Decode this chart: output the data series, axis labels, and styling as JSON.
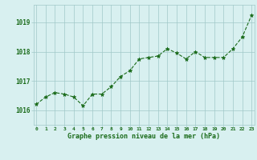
{
  "x": [
    0,
    1,
    2,
    3,
    4,
    5,
    6,
    7,
    8,
    9,
    10,
    11,
    12,
    13,
    14,
    15,
    16,
    17,
    18,
    19,
    20,
    21,
    22,
    23
  ],
  "y": [
    1016.2,
    1016.45,
    1016.6,
    1016.55,
    1016.45,
    1016.15,
    1016.55,
    1016.55,
    1016.8,
    1017.15,
    1017.35,
    1017.75,
    1017.8,
    1017.85,
    1018.1,
    1017.95,
    1017.75,
    1018.0,
    1017.8,
    1017.8,
    1017.8,
    1018.1,
    1018.5,
    1019.25
  ],
  "line_color": "#1a6b1a",
  "marker_color": "#1a6b1a",
  "bg_color": "#d8f0f0",
  "grid_color": "#a0c8c8",
  "xlabel": "Graphe pression niveau de la mer (hPa)",
  "xlabel_color": "#1a6b1a",
  "tick_color": "#1a6b1a",
  "ylim": [
    1015.5,
    1019.6
  ],
  "yticks": [
    1016,
    1017,
    1018,
    1019
  ],
  "xticks": [
    0,
    1,
    2,
    3,
    4,
    5,
    6,
    7,
    8,
    9,
    10,
    11,
    12,
    13,
    14,
    15,
    16,
    17,
    18,
    19,
    20,
    21,
    22,
    23
  ]
}
